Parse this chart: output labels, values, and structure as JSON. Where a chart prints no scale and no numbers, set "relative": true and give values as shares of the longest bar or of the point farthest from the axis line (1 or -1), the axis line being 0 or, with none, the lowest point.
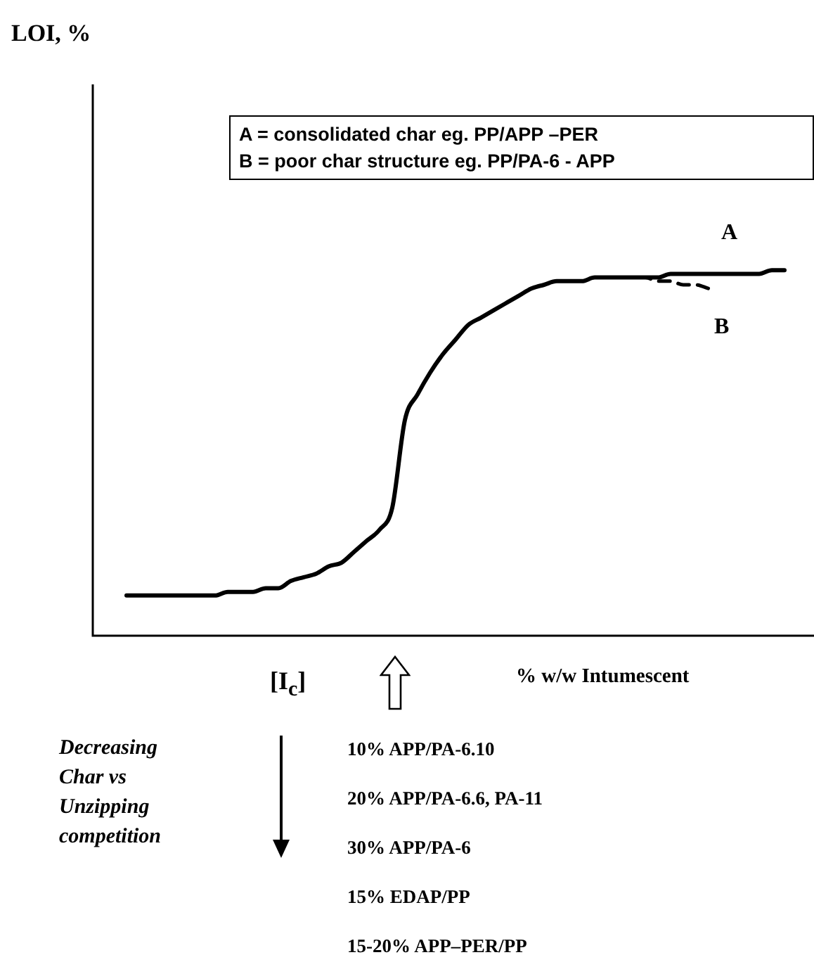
{
  "chart_data": {
    "type": "line",
    "relative": true,
    "xlabel": "% w/w Intumescent",
    "legend": false,
    "tick_labels": false,
    "marker": "none",
    "categories": [
      null,
      null,
      null,
      null,
      null,
      null,
      null,
      null,
      null,
      null,
      null,
      null,
      null,
      null,
      null,
      null,
      null,
      null,
      null,
      null,
      null,
      null,
      null,
      null,
      null,
      null,
      null,
      null,
      null,
      null,
      null,
      null,
      null,
      null,
      null,
      null,
      null,
      null,
      null,
      null,
      null,
      null,
      null,
      null,
      null,
      null,
      null,
      null,
      null,
      null,
      null,
      null,
      null
    ],
    "series": [
      {
        "name": "A",
        "color": "#000000",
        "line_style": "solid",
        "values": [
          0.11,
          0.11,
          0.11,
          0.11,
          0.11,
          0.11,
          0.11,
          0.11,
          0.12,
          0.12,
          0.12,
          0.13,
          0.13,
          0.15,
          0.16,
          0.17,
          0.19,
          0.2,
          0.23,
          0.26,
          0.29,
          0.35,
          0.59,
          0.66,
          0.72,
          0.77,
          0.81,
          0.85,
          0.87,
          0.89,
          0.91,
          0.93,
          0.95,
          0.96,
          0.97,
          0.97,
          0.97,
          0.98,
          0.98,
          0.98,
          0.98,
          0.98,
          0.98,
          0.99,
          0.99,
          0.99,
          0.99,
          0.99,
          0.99,
          0.99,
          0.99,
          1.0,
          1.0
        ]
      },
      {
        "name": "B",
        "color": "#000000",
        "line_style": "dashed",
        "values": [
          null,
          null,
          null,
          null,
          null,
          null,
          null,
          null,
          null,
          null,
          null,
          null,
          null,
          null,
          null,
          null,
          null,
          null,
          null,
          null,
          null,
          null,
          null,
          null,
          null,
          null,
          null,
          null,
          null,
          null,
          null,
          null,
          null,
          null,
          null,
          null,
          null,
          null,
          null,
          0.98,
          0.98,
          0.98,
          0.97,
          0.97,
          0.96,
          0.96,
          0.95,
          null,
          null,
          null,
          null,
          null,
          null
        ]
      }
    ],
    "annotations": [
      "A = consolidated char   eg.  PP/APP –PER",
      "B = poor char structure  eg. PP/PA-6 - APP",
      "[I$_{c}$]",
      "Decreasing Char vs Unzipping competition",
      "10%  APP/PA-6.10",
      "20%  APP/PA-6.6, PA-11",
      "30%  APP/PA-6",
      "15%  EDAP/PP",
      "15-20%  APP–PER/PP",
      "LOI, %"
    ]
  }
}
